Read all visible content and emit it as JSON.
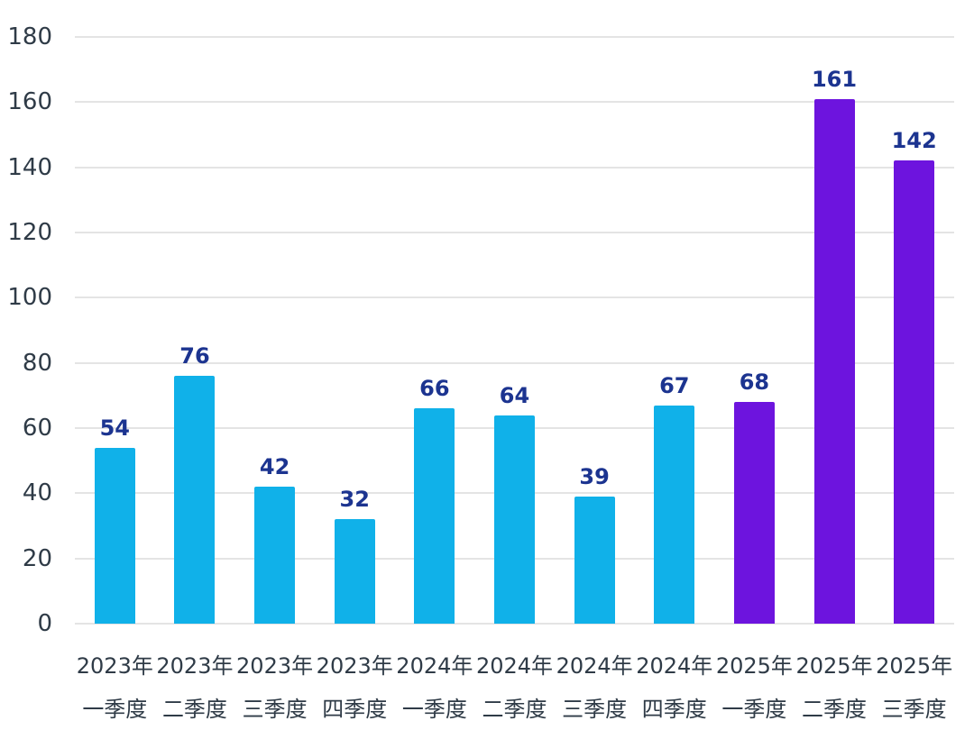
{
  "chart_data": {
    "type": "bar",
    "title": "",
    "legend": false,
    "grid": true,
    "ylim": [
      0,
      180
    ],
    "y_ticks": [
      0,
      20,
      40,
      60,
      80,
      100,
      120,
      140,
      160,
      180
    ],
    "categories": [
      {
        "year": "2023年",
        "quarter": "一季度"
      },
      {
        "year": "2023年",
        "quarter": "二季度"
      },
      {
        "year": "2023年",
        "quarter": "三季度"
      },
      {
        "year": "2023年",
        "quarter": "四季度"
      },
      {
        "year": "2024年",
        "quarter": "一季度"
      },
      {
        "year": "2024年",
        "quarter": "二季度"
      },
      {
        "year": "2024年",
        "quarter": "三季度"
      },
      {
        "year": "2024年",
        "quarter": "四季度"
      },
      {
        "year": "2025年",
        "quarter": "一季度"
      },
      {
        "year": "2025年",
        "quarter": "二季度"
      },
      {
        "year": "2025年",
        "quarter": "三季度"
      }
    ],
    "values": [
      54,
      76,
      42,
      32,
      66,
      64,
      39,
      67,
      68,
      161,
      142
    ],
    "highlighted": [
      false,
      false,
      false,
      false,
      false,
      false,
      false,
      false,
      true,
      true,
      true
    ],
    "colors": {
      "bar_default": "#10B1E9",
      "bar_highlight": "#6D14DE",
      "value_label": "#1C3490",
      "axis_text": "#2F3B47",
      "gridline": "#E4E4E4",
      "background": "#FFFFFF"
    }
  }
}
